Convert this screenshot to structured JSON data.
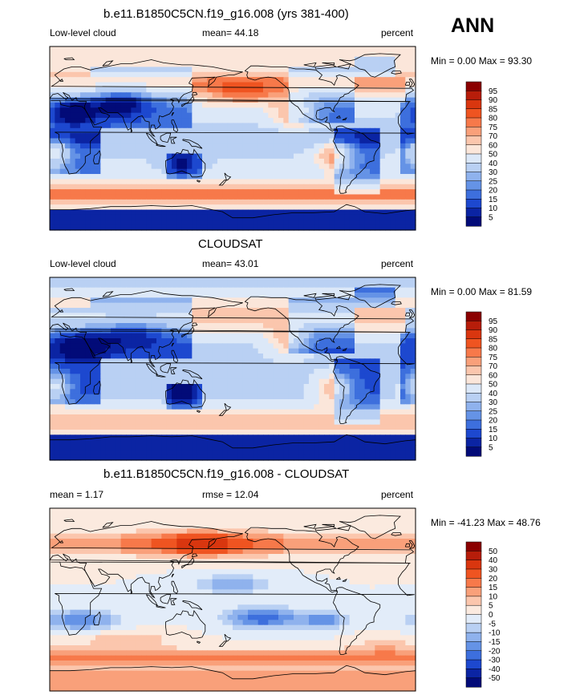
{
  "season": "ANN",
  "colors": {
    "ocean_blue_dark": "#0b24a3",
    "ocean_blue_mid": "#5b84e0",
    "blue_light": "#b6cdf2",
    "near_white": "#f7ece6",
    "orange_light": "#f6b49a",
    "orange_mid": "#ec6a3f",
    "red_dark": "#b5200d",
    "coast": "#000000"
  },
  "chart_data": [
    {
      "type": "heatmap",
      "title": "b.e11.B1850C5CN.f19_g16.008 (yrs 381-400)",
      "left_label": "Low-level cloud",
      "center_label": "mean=  44.18",
      "right_label": "percent",
      "minmax": "Min =   0.00 Max =  93.30",
      "mean": 44.18,
      "min": 0.0,
      "max": 93.3,
      "units": "percent",
      "colorbar": {
        "labels": [
          "95",
          "90",
          "85",
          "80",
          "75",
          "70",
          "60",
          "50",
          "40",
          "30",
          "25",
          "20",
          "15",
          "10",
          "5"
        ],
        "colors": [
          "#8b0000",
          "#b71d0a",
          "#d9360f",
          "#ef5421",
          "#f7794a",
          "#f9a07a",
          "#fbc6ad",
          "#fbe6da",
          "#dce8f8",
          "#b9d0f3",
          "#8fb2ed",
          "#6593e6",
          "#3d6fdd",
          "#1d48cf",
          "#0b24a3",
          "#020b78"
        ]
      }
    },
    {
      "type": "heatmap",
      "title": "CLOUDSAT",
      "left_label": "Low-level cloud",
      "center_label": "mean=  43.01",
      "right_label": "percent",
      "minmax": "Min =   0.00 Max =  81.59",
      "mean": 43.01,
      "min": 0.0,
      "max": 81.59,
      "units": "percent",
      "colorbar": {
        "labels": [
          "95",
          "90",
          "85",
          "80",
          "75",
          "70",
          "60",
          "50",
          "40",
          "30",
          "25",
          "20",
          "15",
          "10",
          "5"
        ],
        "colors": [
          "#8b0000",
          "#b71d0a",
          "#d9360f",
          "#ef5421",
          "#f7794a",
          "#f9a07a",
          "#fbc6ad",
          "#fbe6da",
          "#dce8f8",
          "#b9d0f3",
          "#8fb2ed",
          "#6593e6",
          "#3d6fdd",
          "#1d48cf",
          "#0b24a3",
          "#020b78"
        ]
      }
    },
    {
      "type": "heatmap",
      "title": "b.e11.B1850C5CN.f19_g16.008 - CLOUDSAT",
      "left_label": "mean =   1.17",
      "center_label": "rmse =  12.04",
      "right_label": "percent",
      "minmax": "Min = -41.23 Max =  48.76",
      "mean": 1.17,
      "rmse": 12.04,
      "min": -41.23,
      "max": 48.76,
      "units": "percent",
      "colorbar": {
        "labels": [
          "50",
          "40",
          "30",
          "20",
          "15",
          "10",
          "5",
          "0",
          "-5",
          "-10",
          "-15",
          "-20",
          "-30",
          "-40",
          "-50"
        ],
        "colors": [
          "#8b0000",
          "#b71d0a",
          "#d9360f",
          "#ef5421",
          "#f7794a",
          "#f9a07a",
          "#fbc6ad",
          "#fbeadf",
          "#e2ecf9",
          "#b9d0f3",
          "#8fb2ed",
          "#6593e6",
          "#3d6fdd",
          "#1d48cf",
          "#0b24a3",
          "#020b78"
        ]
      }
    }
  ]
}
